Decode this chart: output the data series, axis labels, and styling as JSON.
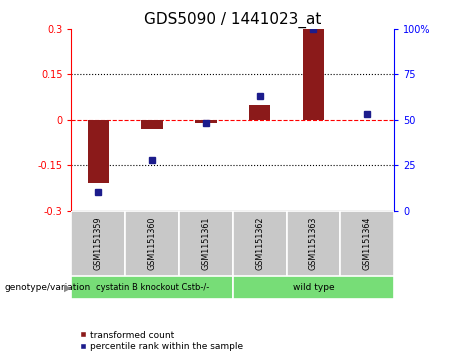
{
  "title": "GDS5090 / 1441023_at",
  "samples": [
    "GSM1151359",
    "GSM1151360",
    "GSM1151361",
    "GSM1151362",
    "GSM1151363",
    "GSM1151364"
  ],
  "red_values": [
    -0.21,
    -0.03,
    -0.01,
    0.05,
    0.3,
    0.0
  ],
  "blue_values": [
    10,
    28,
    48,
    63,
    100,
    53
  ],
  "ylim_left": [
    -0.3,
    0.3
  ],
  "ylim_right": [
    0,
    100
  ],
  "yticks_left": [
    -0.3,
    -0.15,
    0,
    0.15,
    0.3
  ],
  "yticks_right": [
    0,
    25,
    50,
    75,
    100
  ],
  "ytick_labels_left": [
    "-0.3",
    "-0.15",
    "0",
    "0.15",
    "0.3"
  ],
  "ytick_labels_right": [
    "0",
    "25",
    "50",
    "75",
    "100%"
  ],
  "hlines": [
    -0.15,
    0,
    0.15
  ],
  "hline_styles": [
    "dotted",
    "dashed",
    "dotted"
  ],
  "hline_colors": [
    "black",
    "red",
    "black"
  ],
  "group1_label": "cystatin B knockout Cstb-/-",
  "group2_label": "wild type",
  "group1_color": "#77DD77",
  "group2_color": "#77DD77",
  "bar_color": "#8B1A1A",
  "dot_color": "#1C1C8C",
  "legend_red": "transformed count",
  "legend_blue": "percentile rank within the sample",
  "genotype_label": "genotype/variation",
  "bg_plot": "#FFFFFF",
  "bg_sample_boxes": "#C8C8C8",
  "title_fontsize": 11,
  "axis_fontsize": 8,
  "tick_fontsize": 7,
  "bar_width": 0.4
}
